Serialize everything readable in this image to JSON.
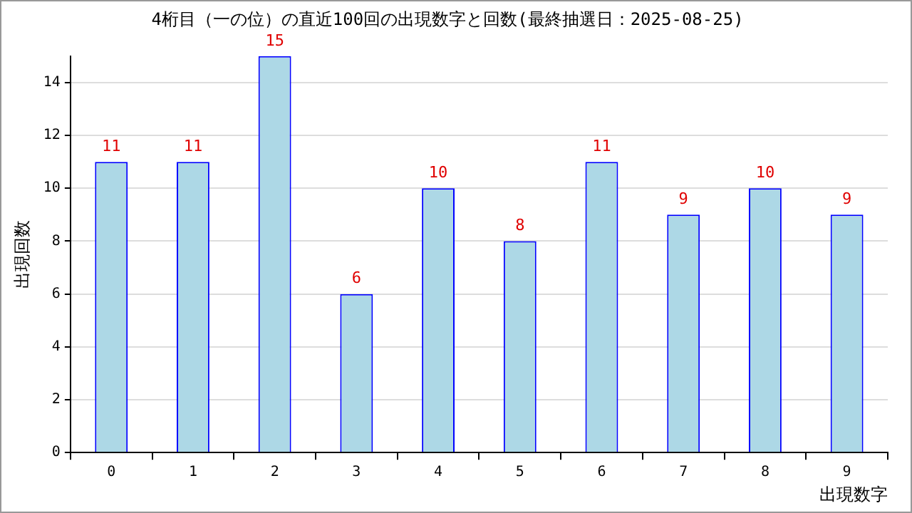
{
  "chart_data": {
    "type": "bar",
    "title": "4桁目（一の位）の直近100回の出現数字と回数(最終抽選日：2025-08-25)",
    "xlabel": "出現数字",
    "ylabel": "出現回数",
    "categories": [
      "0",
      "1",
      "2",
      "3",
      "4",
      "5",
      "6",
      "7",
      "8",
      "9"
    ],
    "values": [
      11,
      11,
      15,
      6,
      10,
      8,
      11,
      9,
      10,
      9
    ],
    "color": "#add8e6",
    "ylim": [
      0,
      15
    ],
    "yticks": [
      0,
      2,
      4,
      6,
      8,
      10,
      12,
      14
    ],
    "grid": "y",
    "data_labels": true,
    "legend": false
  }
}
